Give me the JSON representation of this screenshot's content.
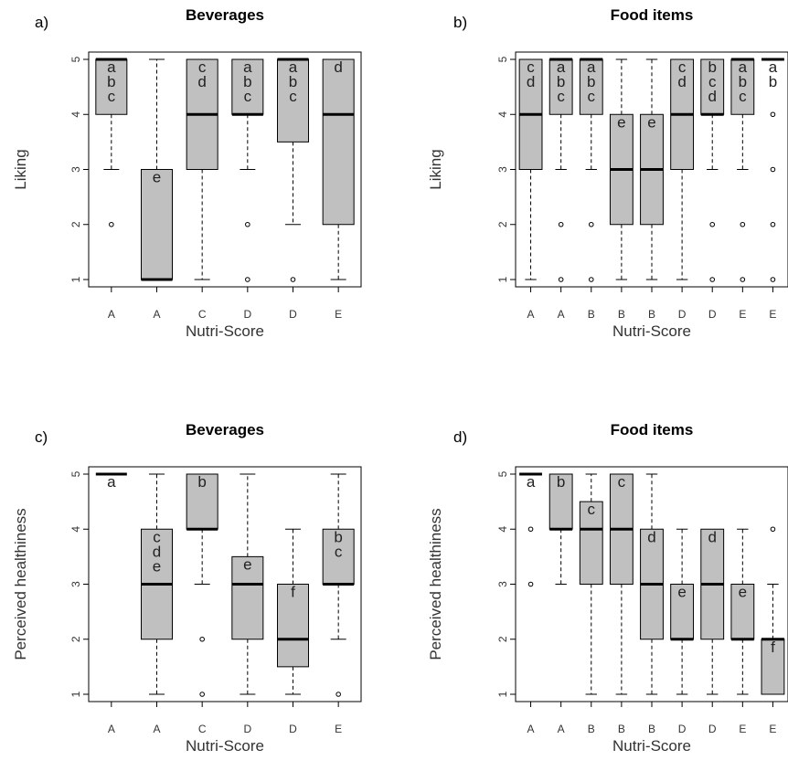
{
  "colors": {
    "box_fill": "#c0c0c0",
    "stroke": "#000000",
    "background": "#ffffff"
  },
  "chart_data": [
    {
      "panel": "a)",
      "title": "Beverages",
      "type": "boxplot",
      "xlabel": "Nutri-Score",
      "ylabel": "Liking",
      "ylim": [
        1,
        5
      ],
      "yticks": [
        1,
        2,
        3,
        4,
        5
      ],
      "categories": [
        "A",
        "A",
        "C",
        "D",
        "D",
        "E"
      ],
      "boxes": [
        {
          "q1": 4,
          "median": 5,
          "q3": 5,
          "whisker_low": 3,
          "whisker_high": 5,
          "outliers": [
            2
          ],
          "letters": [
            "a",
            "b",
            "c"
          ]
        },
        {
          "q1": 1,
          "median": 1,
          "q3": 3,
          "whisker_low": 1,
          "whisker_high": 5,
          "outliers": [],
          "letters": [
            "e"
          ]
        },
        {
          "q1": 3,
          "median": 4,
          "q3": 5,
          "whisker_low": 1,
          "whisker_high": 5,
          "outliers": [],
          "letters": [
            "c",
            "d"
          ]
        },
        {
          "q1": 4,
          "median": 4,
          "q3": 5,
          "whisker_low": 3,
          "whisker_high": 5,
          "outliers": [
            2,
            1
          ],
          "letters": [
            "a",
            "b",
            "c"
          ]
        },
        {
          "q1": 3.5,
          "median": 5,
          "q3": 5,
          "whisker_low": 2,
          "whisker_high": 5,
          "outliers": [
            1
          ],
          "letters": [
            "a",
            "b",
            "c"
          ]
        },
        {
          "q1": 2,
          "median": 4,
          "q3": 5,
          "whisker_low": 1,
          "whisker_high": 5,
          "outliers": [],
          "letters": [
            "d"
          ]
        }
      ]
    },
    {
      "panel": "b)",
      "title": "Food items",
      "type": "boxplot",
      "xlabel": "Nutri-Score",
      "ylabel": "Liking",
      "ylim": [
        1,
        5
      ],
      "yticks": [
        1,
        2,
        3,
        4,
        5
      ],
      "categories": [
        "A",
        "A",
        "B",
        "B",
        "B",
        "D",
        "D",
        "E",
        "E"
      ],
      "boxes": [
        {
          "q1": 3,
          "median": 4,
          "q3": 5,
          "whisker_low": 1,
          "whisker_high": 5,
          "outliers": [],
          "letters": [
            "c",
            "d"
          ]
        },
        {
          "q1": 4,
          "median": 5,
          "q3": 5,
          "whisker_low": 3,
          "whisker_high": 5,
          "outliers": [
            2,
            1
          ],
          "letters": [
            "a",
            "b",
            "c"
          ]
        },
        {
          "q1": 4,
          "median": 5,
          "q3": 5,
          "whisker_low": 3,
          "whisker_high": 5,
          "outliers": [
            2,
            1
          ],
          "letters": [
            "a",
            "b",
            "c"
          ]
        },
        {
          "q1": 2,
          "median": 3,
          "q3": 4,
          "whisker_low": 1,
          "whisker_high": 5,
          "outliers": [],
          "letters": [
            "e"
          ]
        },
        {
          "q1": 2,
          "median": 3,
          "q3": 4,
          "whisker_low": 1,
          "whisker_high": 5,
          "outliers": [],
          "letters": [
            "e"
          ]
        },
        {
          "q1": 3,
          "median": 4,
          "q3": 5,
          "whisker_low": 1,
          "whisker_high": 5,
          "outliers": [],
          "letters": [
            "c",
            "d"
          ]
        },
        {
          "q1": 4,
          "median": 4,
          "q3": 5,
          "whisker_low": 3,
          "whisker_high": 5,
          "outliers": [
            2,
            1
          ],
          "letters": [
            "b",
            "c",
            "d"
          ]
        },
        {
          "q1": 4,
          "median": 5,
          "q3": 5,
          "whisker_low": 3,
          "whisker_high": 5,
          "outliers": [
            2,
            1
          ],
          "letters": [
            "a",
            "b",
            "c"
          ]
        },
        {
          "q1": 5,
          "median": 5,
          "q3": 5,
          "whisker_low": 5,
          "whisker_high": 5,
          "outliers": [
            4,
            3,
            2,
            1
          ],
          "letters": [
            "a",
            "b"
          ]
        }
      ]
    },
    {
      "panel": "c)",
      "title": "Beverages",
      "type": "boxplot",
      "xlabel": "Nutri-Score",
      "ylabel": "Perceived healthiness",
      "ylim": [
        1,
        5
      ],
      "yticks": [
        1,
        2,
        3,
        4,
        5
      ],
      "categories": [
        "A",
        "A",
        "C",
        "D",
        "D",
        "E"
      ],
      "boxes": [
        {
          "q1": 5,
          "median": 5,
          "q3": 5,
          "whisker_low": 5,
          "whisker_high": 5,
          "outliers": [],
          "letters": [
            "a"
          ]
        },
        {
          "q1": 2,
          "median": 3,
          "q3": 4,
          "whisker_low": 1,
          "whisker_high": 5,
          "outliers": [],
          "letters": [
            "c",
            "d",
            "e"
          ]
        },
        {
          "q1": 4,
          "median": 4,
          "q3": 5,
          "whisker_low": 3,
          "whisker_high": 5,
          "outliers": [
            2,
            1
          ],
          "letters": [
            "b"
          ]
        },
        {
          "q1": 2,
          "median": 3,
          "q3": 3.5,
          "whisker_low": 1,
          "whisker_high": 5,
          "outliers": [],
          "letters": [
            "e"
          ]
        },
        {
          "q1": 1.5,
          "median": 2,
          "q3": 3,
          "whisker_low": 1,
          "whisker_high": 4,
          "outliers": [],
          "letters": [
            "f"
          ]
        },
        {
          "q1": 3,
          "median": 3,
          "q3": 4,
          "whisker_low": 2,
          "whisker_high": 5,
          "outliers": [
            1
          ],
          "letters": [
            "b",
            "c"
          ]
        }
      ]
    },
    {
      "panel": "d)",
      "title": "Food items",
      "type": "boxplot",
      "xlabel": "Nutri-Score",
      "ylabel": "Perceived healthiness",
      "ylim": [
        1,
        5
      ],
      "yticks": [
        1,
        2,
        3,
        4,
        5
      ],
      "categories": [
        "A",
        "A",
        "B",
        "B",
        "B",
        "D",
        "D",
        "E",
        "E"
      ],
      "boxes": [
        {
          "q1": 5,
          "median": 5,
          "q3": 5,
          "whisker_low": 5,
          "whisker_high": 5,
          "outliers": [
            4,
            3
          ],
          "letters": [
            "a"
          ]
        },
        {
          "q1": 4,
          "median": 4,
          "q3": 5,
          "whisker_low": 3,
          "whisker_high": 5,
          "outliers": [],
          "letters": [
            "b"
          ]
        },
        {
          "q1": 3,
          "median": 4,
          "q3": 4.5,
          "whisker_low": 1,
          "whisker_high": 5,
          "outliers": [],
          "letters": [
            "c"
          ]
        },
        {
          "q1": 3,
          "median": 4,
          "q3": 5,
          "whisker_low": 1,
          "whisker_high": 5,
          "outliers": [],
          "letters": [
            "c"
          ]
        },
        {
          "q1": 2,
          "median": 3,
          "q3": 4,
          "whisker_low": 1,
          "whisker_high": 5,
          "outliers": [],
          "letters": [
            "d"
          ]
        },
        {
          "q1": 2,
          "median": 2,
          "q3": 3,
          "whisker_low": 1,
          "whisker_high": 4,
          "outliers": [],
          "letters": [
            "e"
          ]
        },
        {
          "q1": 2,
          "median": 3,
          "q3": 4,
          "whisker_low": 1,
          "whisker_high": 4,
          "outliers": [],
          "letters": [
            "d"
          ]
        },
        {
          "q1": 2,
          "median": 2,
          "q3": 3,
          "whisker_low": 1,
          "whisker_high": 4,
          "outliers": [],
          "letters": [
            "e"
          ]
        },
        {
          "q1": 1,
          "median": 2,
          "q3": 2,
          "whisker_low": 1,
          "whisker_high": 3,
          "outliers": [
            4
          ],
          "letters": [
            "f"
          ]
        }
      ]
    }
  ]
}
